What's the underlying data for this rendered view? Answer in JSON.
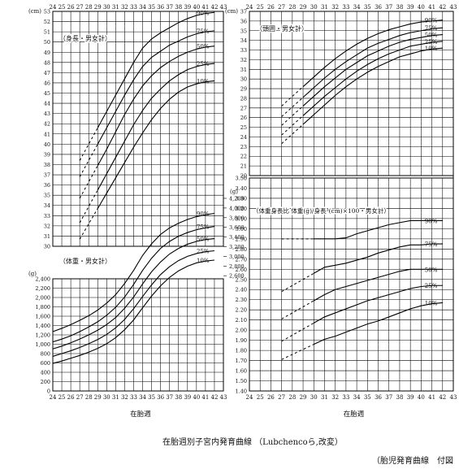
{
  "caption": "在胎週別子宮内発育曲線 （Lubchencoら,改変）",
  "footnote": "（胎児発育曲線　付図",
  "charts": [
    {
      "key": "length",
      "type": "line",
      "panel_label": "（身長・男女計）",
      "unit": "(cm)",
      "x_label": "在胎週",
      "x_ticks": [
        24,
        25,
        26,
        27,
        28,
        29,
        30,
        31,
        32,
        33,
        34,
        35,
        36,
        37,
        38,
        39,
        40,
        41,
        42,
        43
      ],
      "y_range": [
        30,
        53
      ],
      "y_ticks": [
        30,
        31,
        32,
        33,
        34,
        35,
        36,
        37,
        38,
        39,
        40,
        41,
        42,
        43,
        44,
        45,
        46,
        47,
        48,
        49,
        50,
        51,
        52,
        53
      ],
      "percentile_labels": [
        "90%",
        "75%",
        "50%",
        "25%",
        "10%"
      ],
      "series": [
        {
          "name": "90%",
          "dash_x": [
            27,
            29
          ],
          "x": [
            29,
            30,
            31,
            32,
            33,
            34,
            35,
            36,
            37,
            38,
            39,
            40,
            41,
            42
          ],
          "y": [
            41.6,
            43.2,
            44.8,
            46.4,
            48.0,
            49.4,
            50.3,
            50.9,
            51.4,
            51.9,
            52.3,
            52.6,
            52.8,
            52.9
          ]
        },
        {
          "name": "75%",
          "dash_x": [
            27,
            29
          ],
          "x": [
            29,
            30,
            31,
            32,
            33,
            34,
            35,
            36,
            37,
            38,
            39,
            40,
            41,
            42
          ],
          "y": [
            40.0,
            41.6,
            43.2,
            44.8,
            46.3,
            47.6,
            48.5,
            49.1,
            49.7,
            50.1,
            50.5,
            50.8,
            51.0,
            51.1
          ]
        },
        {
          "name": "50%",
          "dash_x": [
            27,
            29
          ],
          "x": [
            29,
            30,
            31,
            32,
            33,
            34,
            35,
            36,
            37,
            38,
            39,
            40,
            41,
            42
          ],
          "y": [
            37.9,
            39.5,
            41.2,
            42.9,
            44.4,
            45.7,
            46.7,
            47.5,
            48.1,
            48.6,
            49.0,
            49.3,
            49.5,
            49.6
          ]
        },
        {
          "name": "25%",
          "dash_x": [
            27,
            29
          ],
          "x": [
            29,
            30,
            31,
            32,
            33,
            34,
            35,
            36,
            37,
            38,
            39,
            40,
            41,
            42
          ],
          "y": [
            35.5,
            37.1,
            38.7,
            40.3,
            41.9,
            43.3,
            44.5,
            45.4,
            46.2,
            46.8,
            47.3,
            47.6,
            47.8,
            47.9
          ]
        },
        {
          "name": "10%",
          "dash_x": [
            27,
            29
          ],
          "x": [
            29,
            30,
            31,
            32,
            33,
            34,
            35,
            36,
            37,
            38,
            39,
            40,
            41,
            42
          ],
          "y": [
            33.7,
            35.2,
            36.7,
            38.2,
            39.7,
            41.1,
            42.4,
            43.5,
            44.4,
            45.1,
            45.6,
            45.9,
            46.1,
            46.2
          ]
        }
      ]
    },
    {
      "key": "weight",
      "type": "line",
      "panel_label": "（体重・男女計）",
      "unit": "(g)",
      "right_unit": "(g)",
      "x_label": "在胎週",
      "x_ticks": [
        24,
        25,
        26,
        27,
        28,
        29,
        30,
        31,
        32,
        33,
        34,
        35,
        36,
        37,
        38,
        39,
        40,
        41,
        42,
        43
      ],
      "y_range": [
        0,
        2400
      ],
      "y_ticks": [
        0,
        200,
        400,
        600,
        800,
        1000,
        1200,
        1400,
        1600,
        1800,
        2000,
        2200,
        2400
      ],
      "y_tick_labels": [
        "0",
        "200",
        "400",
        "600",
        "800",
        "1,000",
        "1,200",
        "1,400",
        "1,600",
        "1,800",
        "2,000",
        "2,200",
        "2,400"
      ],
      "right_tick_labels": [
        "4,200",
        "4,000",
        "3,800",
        "3,600",
        "3,400",
        "3,200",
        "3,000",
        "2,800",
        "2,600"
      ],
      "percentile_labels": [
        "90%",
        "75%",
        "50%",
        "25%",
        "10%"
      ],
      "series": [
        {
          "name": "90%",
          "x": [
            24,
            25,
            26,
            27,
            28,
            29,
            30,
            31,
            32,
            33,
            34,
            35,
            36,
            37,
            38,
            39,
            40,
            41,
            42
          ],
          "y": [
            1270,
            1340,
            1420,
            1510,
            1610,
            1730,
            1880,
            2060,
            2300,
            2580,
            2900,
            3150,
            3350,
            3490,
            3590,
            3670,
            3730,
            3770,
            3800
          ]
        },
        {
          "name": "75%",
          "x": [
            24,
            25,
            26,
            27,
            28,
            29,
            30,
            31,
            32,
            33,
            34,
            35,
            36,
            37,
            38,
            39,
            40,
            41,
            42
          ],
          "y": [
            1050,
            1110,
            1180,
            1270,
            1370,
            1480,
            1620,
            1790,
            2010,
            2280,
            2580,
            2840,
            3050,
            3200,
            3310,
            3390,
            3450,
            3490,
            3520
          ]
        },
        {
          "name": "50%",
          "x": [
            24,
            25,
            26,
            27,
            28,
            29,
            30,
            31,
            32,
            33,
            34,
            35,
            36,
            37,
            38,
            39,
            40,
            41,
            42
          ],
          "y": [
            900,
            960,
            1030,
            1110,
            1200,
            1300,
            1420,
            1570,
            1770,
            2010,
            2290,
            2550,
            2760,
            2930,
            3050,
            3140,
            3200,
            3240,
            3260
          ]
        },
        {
          "name": "25%",
          "x": [
            24,
            25,
            26,
            27,
            28,
            29,
            30,
            31,
            32,
            33,
            34,
            35,
            36,
            37,
            38,
            39,
            40,
            41,
            42
          ],
          "y": [
            740,
            800,
            860,
            930,
            1010,
            1100,
            1210,
            1350,
            1530,
            1760,
            2020,
            2270,
            2490,
            2660,
            2790,
            2880,
            2940,
            2980,
            3000
          ]
        },
        {
          "name": "10%",
          "x": [
            24,
            25,
            26,
            27,
            28,
            29,
            30,
            31,
            32,
            33,
            34,
            35,
            36,
            37,
            38,
            39,
            40,
            41,
            42
          ],
          "y": [
            590,
            640,
            700,
            760,
            830,
            910,
            1010,
            1140,
            1310,
            1520,
            1780,
            2030,
            2250,
            2430,
            2570,
            2670,
            2740,
            2780,
            2800
          ]
        }
      ]
    },
    {
      "key": "head",
      "type": "line",
      "panel_label": "（頭囲・男女計）",
      "unit": "(cm)",
      "x_label": "在胎週",
      "x_ticks": [
        24,
        25,
        26,
        27,
        28,
        29,
        30,
        31,
        32,
        33,
        34,
        35,
        36,
        37,
        38,
        39,
        40,
        41,
        42,
        43
      ],
      "y_range": [
        20,
        37
      ],
      "y_ticks": [
        20,
        21,
        22,
        23,
        24,
        25,
        26,
        27,
        28,
        29,
        30,
        31,
        32,
        33,
        34,
        35,
        36,
        37
      ],
      "percentile_labels": [
        "90%",
        "75%",
        "50%",
        "25%",
        "10%"
      ],
      "series": [
        {
          "name": "90%",
          "dash_x": [
            27,
            29
          ],
          "x": [
            29,
            30,
            31,
            32,
            33,
            34,
            35,
            36,
            37,
            38,
            39,
            40,
            41,
            42
          ],
          "y": [
            29.2,
            30.2,
            31.2,
            32.1,
            32.9,
            33.6,
            34.2,
            34.7,
            35.1,
            35.4,
            35.7,
            35.9,
            36.0,
            36.1
          ]
        },
        {
          "name": "75%",
          "dash_x": [
            27,
            29
          ],
          "x": [
            29,
            30,
            31,
            32,
            33,
            34,
            35,
            36,
            37,
            38,
            39,
            40,
            41,
            42
          ],
          "y": [
            28.1,
            29.1,
            30.1,
            31.0,
            31.8,
            32.5,
            33.2,
            33.7,
            34.1,
            34.5,
            34.8,
            35.0,
            35.2,
            35.3
          ]
        },
        {
          "name": "50%",
          "dash_x": [
            27,
            29
          ],
          "x": [
            29,
            30,
            31,
            32,
            33,
            34,
            35,
            36,
            37,
            38,
            39,
            40,
            41,
            42
          ],
          "y": [
            27.2,
            28.2,
            29.2,
            30.1,
            31.0,
            31.7,
            32.4,
            32.9,
            33.4,
            33.8,
            34.1,
            34.3,
            34.5,
            34.6
          ]
        },
        {
          "name": "25%",
          "dash_x": [
            27,
            29
          ],
          "x": [
            29,
            30,
            31,
            32,
            33,
            34,
            35,
            36,
            37,
            38,
            39,
            40,
            41,
            42
          ],
          "y": [
            26.2,
            27.2,
            28.2,
            29.1,
            30.0,
            30.8,
            31.5,
            32.1,
            32.6,
            33.0,
            33.4,
            33.6,
            33.8,
            33.9
          ]
        },
        {
          "name": "10%",
          "dash_x": [
            27,
            29
          ],
          "x": [
            29,
            30,
            31,
            32,
            33,
            34,
            35,
            36,
            37,
            38,
            39,
            40,
            41,
            42
          ],
          "y": [
            25.3,
            26.3,
            27.3,
            28.3,
            29.2,
            30.0,
            30.7,
            31.3,
            31.8,
            32.3,
            32.6,
            32.9,
            33.1,
            33.2
          ]
        }
      ]
    },
    {
      "key": "ratio",
      "type": "line",
      "panel_label": "（体重身長比 体重(g)/身長³(cm)×100・男女計）",
      "x_label": "在胎週",
      "x_ticks": [
        24,
        25,
        26,
        27,
        28,
        29,
        30,
        31,
        32,
        33,
        34,
        35,
        36,
        37,
        38,
        39,
        40,
        41,
        42,
        43
      ],
      "y_range": [
        1.4,
        3.5
      ],
      "y_ticks": [
        1.4,
        1.5,
        1.6,
        1.7,
        1.8,
        1.9,
        2.0,
        2.1,
        2.2,
        2.3,
        2.4,
        2.5,
        2.6,
        2.7,
        2.8,
        2.9,
        3.0,
        3.1,
        3.2,
        3.3,
        3.4,
        3.5
      ],
      "y_tick_labels": [
        "1.40",
        "1.50",
        "1.60",
        "1.70",
        "1.80",
        "1.90",
        "2.00",
        "2.10",
        "2.20",
        "2.30",
        "2.40",
        "2.50",
        "2.60",
        "2.70",
        "2.80",
        "2.90",
        "3.00",
        "3.10",
        "3.20",
        "3.30",
        "3.40",
        "3.50"
      ],
      "percentile_labels": [
        "90%",
        "75%",
        "50%",
        "25%",
        "10%"
      ],
      "series": [
        {
          "name": "90%",
          "dash_x": [
            27,
            30
          ],
          "x": [
            30,
            31,
            32,
            33,
            34,
            35,
            36,
            37,
            38,
            39,
            40,
            41,
            42
          ],
          "y": [
            2.9,
            2.9,
            2.9,
            2.91,
            2.95,
            2.98,
            3.01,
            3.04,
            3.06,
            3.08,
            3.08,
            3.08,
            3.08
          ]
        },
        {
          "name": "75%",
          "dash_x": [
            27,
            30
          ],
          "x": [
            30,
            31,
            32,
            33,
            34,
            35,
            36,
            37,
            38,
            39,
            40,
            41,
            42
          ],
          "y": [
            2.56,
            2.62,
            2.64,
            2.66,
            2.69,
            2.72,
            2.76,
            2.79,
            2.82,
            2.84,
            2.84,
            2.85,
            2.85
          ]
        },
        {
          "name": "50%",
          "dash_x": [
            27,
            30
          ],
          "x": [
            30,
            31,
            32,
            33,
            34,
            35,
            36,
            37,
            38,
            39,
            40,
            41,
            42
          ],
          "y": [
            2.29,
            2.35,
            2.4,
            2.43,
            2.46,
            2.49,
            2.52,
            2.55,
            2.58,
            2.6,
            2.6,
            2.6,
            2.6
          ]
        },
        {
          "name": "25%",
          "dash_x": [
            27,
            30
          ],
          "x": [
            30,
            31,
            32,
            33,
            34,
            35,
            36,
            37,
            38,
            39,
            40,
            41,
            42
          ],
          "y": [
            2.07,
            2.13,
            2.17,
            2.21,
            2.25,
            2.29,
            2.32,
            2.35,
            2.38,
            2.41,
            2.43,
            2.44,
            2.44
          ]
        },
        {
          "name": "10%",
          "dash_x": [
            27,
            30
          ],
          "x": [
            30,
            31,
            32,
            33,
            34,
            35,
            36,
            37,
            38,
            39,
            40,
            41,
            42
          ],
          "y": [
            1.86,
            1.91,
            1.94,
            1.98,
            2.02,
            2.06,
            2.09,
            2.13,
            2.17,
            2.21,
            2.24,
            2.26,
            2.27
          ]
        }
      ]
    }
  ]
}
